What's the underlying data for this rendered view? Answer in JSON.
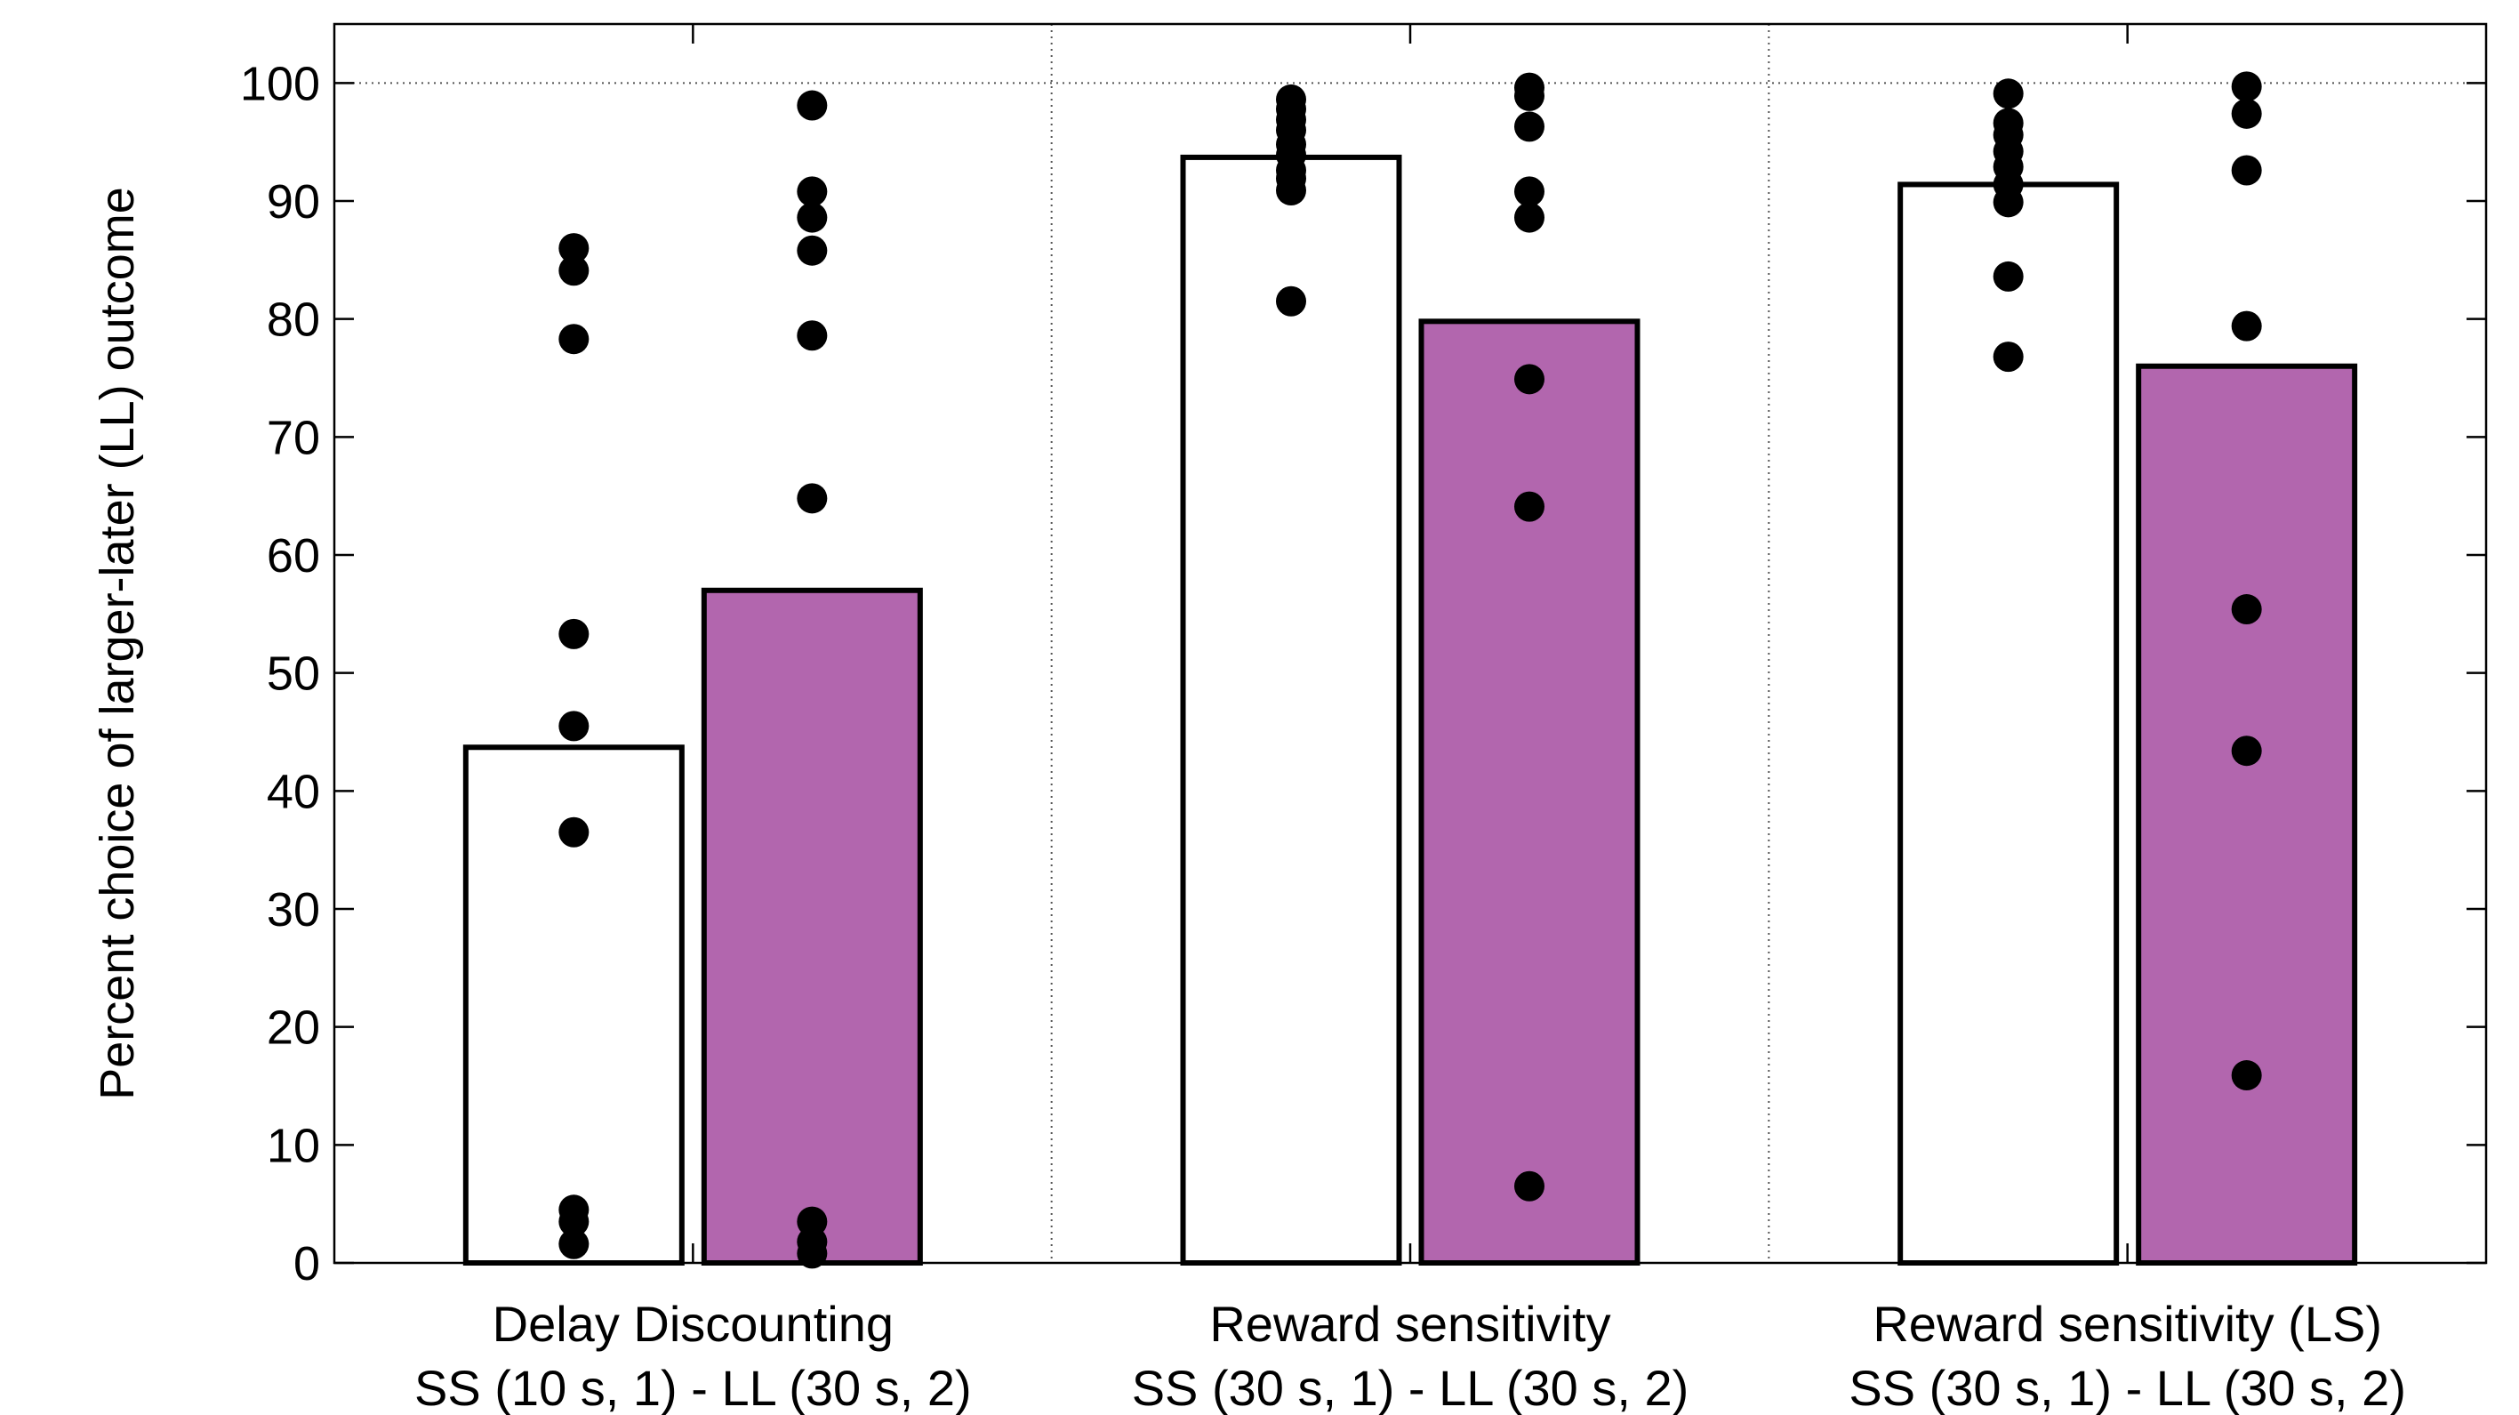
{
  "chart_data": {
    "type": "bar",
    "ylabel": "Percent choice of larger-later (LL) outcome",
    "xlabel": "",
    "title": "",
    "ylim": [
      0,
      105
    ],
    "yticks": [
      0,
      10,
      20,
      30,
      40,
      50,
      60,
      70,
      80,
      90,
      100
    ],
    "ytick_labels": [
      "0",
      "10",
      "20",
      "30",
      "40",
      "50",
      "60",
      "70",
      "80",
      "90",
      "100"
    ],
    "grid": "dotted reference line at 100 and dotted separators between groups",
    "colors": {
      "condition_a": "#ffffff",
      "condition_b": "#b266ae",
      "points": "#000000",
      "outline": "#000000"
    },
    "groups": [
      {
        "label_line1": "Delay Discounting",
        "label_line2": "SS (10 s, 1) - LL (30 s, 2)",
        "bars": [
          {
            "value": 43.7,
            "color_key": "condition_a",
            "points": [
              86.0,
              84.1,
              78.3,
              53.3,
              45.5,
              36.5,
              4.5,
              3.5,
              1.6
            ]
          },
          {
            "value": 57.0,
            "color_key": "condition_b",
            "points": [
              98.1,
              90.8,
              88.6,
              85.8,
              78.6,
              64.8,
              3.5,
              1.8,
              0.8
            ]
          }
        ]
      },
      {
        "label_line1": "Reward sensitivity",
        "label_line2": "SS (30 s, 1) - LL (30 s, 2)",
        "bars": [
          {
            "value": 93.7,
            "color_key": "condition_a",
            "points": [
              98.6,
              97.8,
              96.9,
              96.0,
              94.8,
              93.9,
              92.6,
              91.9,
              90.9,
              81.5
            ]
          },
          {
            "value": 79.8,
            "color_key": "condition_b",
            "points": [
              99.6,
              98.9,
              96.3,
              90.8,
              88.6,
              74.9,
              64.1,
              6.5
            ]
          }
        ]
      },
      {
        "label_line1": "Reward sensitivity (LS)",
        "label_line2": "SS (30 s, 1) - LL (30 s, 2)",
        "bars": [
          {
            "value": 91.4,
            "color_key": "condition_a",
            "points": [
              99.1,
              96.6,
              95.6,
              94.2,
              92.9,
              91.4,
              89.9,
              83.6,
              76.8
            ]
          },
          {
            "value": 76.0,
            "color_key": "condition_b",
            "points": [
              99.7,
              97.4,
              92.6,
              79.4,
              55.4,
              43.4,
              15.9
            ]
          }
        ]
      }
    ]
  }
}
